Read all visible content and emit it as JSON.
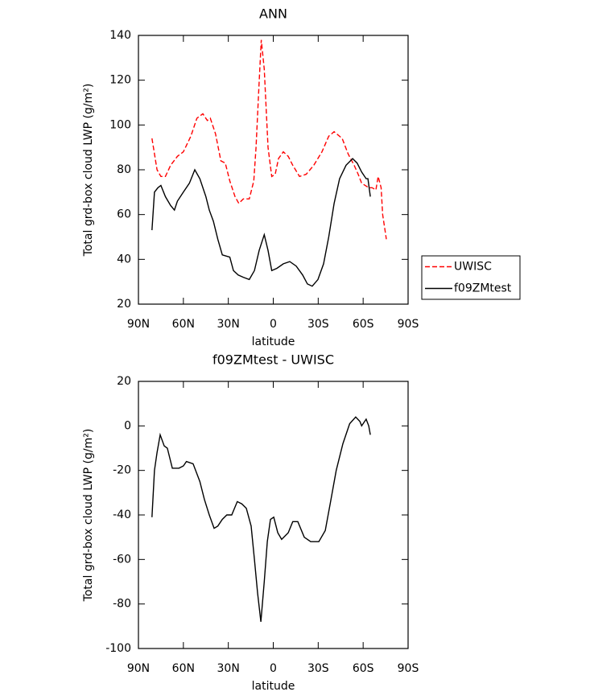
{
  "chart_data": [
    {
      "type": "line",
      "title": "ANN",
      "xlabel": "latitude",
      "ylabel": "Total grd-box cloud LWP (g/m²)",
      "xlim": [
        90,
        -90
      ],
      "ylim": [
        20,
        140
      ],
      "xticks": [
        {
          "value": 90,
          "label": "90N"
        },
        {
          "value": 60,
          "label": "60N"
        },
        {
          "value": 30,
          "label": "30N"
        },
        0,
        {
          "value": -30,
          "label": "30S"
        },
        {
          "value": -60,
          "label": "60S"
        },
        {
          "value": -90,
          "label": "90S"
        }
      ],
      "yticks": [
        20,
        40,
        60,
        80,
        100,
        120,
        140
      ],
      "legend_position": "right",
      "series": [
        {
          "name": "UWISC",
          "color": "#ff0000",
          "line_style": "dashed",
          "x": [
            81,
            77.6,
            75,
            72,
            68.5,
            64,
            60,
            55,
            51,
            47,
            44,
            42,
            38.5,
            35,
            32,
            29,
            25.5,
            23,
            20,
            16,
            13,
            11.5,
            9.5,
            8,
            6,
            3.5,
            1,
            -1.3,
            -3.5,
            -6.7,
            -10,
            -13,
            -17.5,
            -22,
            -27,
            -32.5,
            -37,
            -40.6,
            -46,
            -50,
            -54,
            -56.7,
            -59,
            -63.7,
            -66,
            -68.5,
            -70,
            -72,
            -73,
            -75.5
          ],
          "values": [
            94,
            80,
            77,
            77,
            82,
            86,
            88,
            95,
            103,
            105,
            102,
            103,
            96,
            84,
            83,
            75,
            68,
            65,
            67,
            67,
            75,
            90,
            118,
            138,
            125,
            90,
            77,
            78,
            85,
            88,
            86,
            82,
            77,
            78,
            82,
            88,
            95,
            97,
            94,
            87,
            82,
            78,
            74,
            72,
            72,
            71,
            77,
            72,
            60,
            49
          ]
        },
        {
          "name": "f09ZMtest",
          "color": "#000000",
          "line_style": "solid",
          "x": [
            81,
            79.3,
            77,
            75,
            72,
            68.5,
            66,
            64,
            60,
            56,
            52.4,
            49,
            45,
            42.7,
            40,
            37,
            34,
            29,
            26.6,
            23.4,
            20,
            16,
            12.6,
            9.4,
            6,
            3.5,
            1,
            -2.4,
            -6.7,
            -11,
            -15.3,
            -19.6,
            -22.8,
            -26,
            -29.8,
            -33.6,
            -37,
            -40.6,
            -44.3,
            -48.6,
            -53,
            -56,
            -59,
            -62,
            -63.2,
            -64.8
          ],
          "values": [
            53,
            70,
            72,
            73,
            68,
            64,
            62,
            66,
            70,
            74,
            80,
            76,
            68,
            62,
            57,
            49,
            42,
            41,
            35,
            33,
            32,
            31,
            35,
            44,
            51,
            44,
            35,
            36,
            38,
            39,
            37,
            33,
            29,
            28,
            31,
            38,
            50,
            65,
            76,
            82,
            85,
            83,
            79,
            76,
            76,
            68
          ]
        }
      ]
    },
    {
      "type": "line",
      "title": "f09ZMtest - UWISC",
      "xlabel": "latitude",
      "ylabel": "Total grd-box cloud LWP (g/m²)",
      "xlim": [
        90,
        -90
      ],
      "ylim": [
        -100,
        20
      ],
      "xticks": [
        {
          "value": 90,
          "label": "90N"
        },
        {
          "value": 60,
          "label": "60N"
        },
        {
          "value": 30,
          "label": "30N"
        },
        0,
        {
          "value": -30,
          "label": "30S"
        },
        {
          "value": -60,
          "label": "60S"
        },
        {
          "value": -90,
          "label": "90S"
        }
      ],
      "yticks": [
        -100,
        -80,
        -60,
        -40,
        -20,
        0,
        20
      ],
      "color": "#000000",
      "x": [
        81,
        79.3,
        77.6,
        75.5,
        72.8,
        70.7,
        67.4,
        63,
        60,
        58,
        53.5,
        49,
        46,
        42.7,
        39.5,
        37,
        34,
        31,
        27.7,
        24,
        21,
        18,
        14.8,
        12.6,
        10.5,
        8.3,
        6,
        4,
        1.9,
        -0.3,
        -3,
        -5.6,
        -10,
        -13,
        -16.4,
        -20.7,
        -25,
        -30.4,
        -34.7,
        -38,
        -42,
        -46.5,
        -51,
        -55,
        -57.8,
        -59,
        -62,
        -63.7,
        -64.8
      ],
      "values": [
        -41,
        -20,
        -12,
        -4,
        -9,
        -10,
        -19,
        -19,
        -18,
        -16,
        -17,
        -25,
        -33,
        -40,
        -46,
        -45,
        -42,
        -40,
        -40,
        -34,
        -35,
        -37,
        -45,
        -60,
        -75,
        -88,
        -70,
        -52,
        -42,
        -41,
        -48,
        -51,
        -48,
        -43,
        -43,
        -50,
        -52,
        -52,
        -47,
        -35,
        -20,
        -8,
        1,
        4,
        2,
        0,
        3,
        0,
        -4
      ]
    }
  ]
}
